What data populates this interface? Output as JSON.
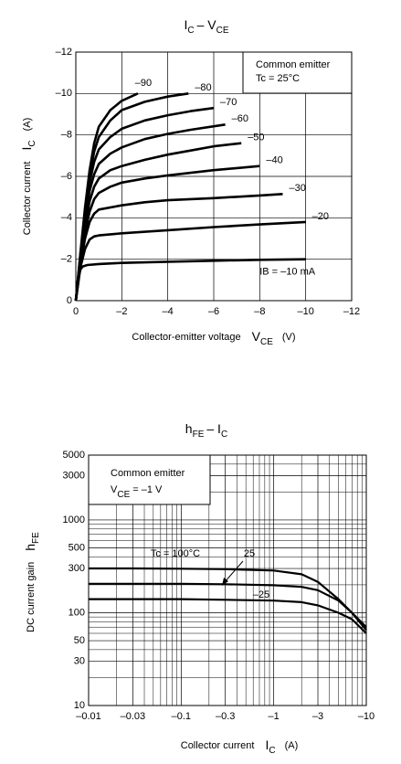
{
  "chart_data": [
    {
      "type": "line",
      "title": [
        "I",
        "C",
        "– V",
        "CE"
      ],
      "xlabel": [
        "Collector-emitter voltage",
        "V",
        "CE",
        "(V)"
      ],
      "ylabel": [
        "Collector current",
        "I",
        "C",
        "(A)"
      ],
      "annotations": [
        "Common emitter",
        "Tc = 25°C"
      ],
      "xlim": [
        0,
        -12
      ],
      "xticks": [
        0,
        {
          "value": -2,
          "label": "–2"
        },
        {
          "value": -4,
          "label": "–4"
        },
        {
          "value": -6,
          "label": "–6"
        },
        {
          "value": -8,
          "label": "–8"
        },
        {
          "value": -10,
          "label": "–10"
        },
        {
          "value": -12,
          "label": "–12"
        }
      ],
      "ylim": [
        0,
        -12
      ],
      "yticks": [
        0,
        {
          "value": -2,
          "label": "–2"
        },
        {
          "value": -4,
          "label": "–4"
        },
        {
          "value": -6,
          "label": "–6"
        },
        {
          "value": -8,
          "label": "–8"
        },
        {
          "value": -10,
          "label": "–10"
        },
        {
          "value": -12,
          "label": "–12"
        }
      ],
      "grid": true,
      "series": [
        {
          "name": "–90",
          "color": "#000000",
          "x": [
            0,
            -0.2,
            -0.4,
            -0.6,
            -0.8,
            -1,
            -1.5,
            -2,
            -2.7
          ],
          "values": [
            0,
            -2.3,
            -4.5,
            -6.3,
            -7.6,
            -8.4,
            -9.2,
            -9.65,
            -10.0
          ]
        },
        {
          "name": "–80",
          "color": "#000000",
          "x": [
            0,
            -0.2,
            -0.4,
            -0.6,
            -0.8,
            -1,
            -1.5,
            -2,
            -3,
            -4,
            -4.9
          ],
          "values": [
            0,
            -2.2,
            -4.3,
            -6.0,
            -7.2,
            -7.9,
            -8.7,
            -9.2,
            -9.6,
            -9.85,
            -10.0
          ]
        },
        {
          "name": "–70",
          "color": "#000000",
          "x": [
            0,
            -0.2,
            -0.4,
            -0.6,
            -0.8,
            -1,
            -1.5,
            -2,
            -3,
            -4,
            -5,
            -6
          ],
          "values": [
            0,
            -2.1,
            -4.1,
            -5.7,
            -6.7,
            -7.3,
            -7.9,
            -8.3,
            -8.7,
            -8.95,
            -9.15,
            -9.3
          ]
        },
        {
          "name": "–60",
          "color": "#000000",
          "x": [
            0,
            -0.2,
            -0.4,
            -0.6,
            -0.8,
            -1,
            -1.5,
            -2,
            -3,
            -4,
            -5,
            -6.5
          ],
          "values": [
            0,
            -2.0,
            -3.9,
            -5.3,
            -6.1,
            -6.6,
            -7.1,
            -7.4,
            -7.8,
            -8.05,
            -8.25,
            -8.5
          ]
        },
        {
          "name": "–50",
          "color": "#000000",
          "x": [
            0,
            -0.2,
            -0.4,
            -0.6,
            -0.8,
            -1,
            -1.5,
            -2,
            -3,
            -4,
            -5,
            -6,
            -7.2
          ],
          "values": [
            0,
            -1.9,
            -3.6,
            -4.8,
            -5.5,
            -5.9,
            -6.3,
            -6.5,
            -6.8,
            -7.05,
            -7.25,
            -7.45,
            -7.6
          ]
        },
        {
          "name": "–40",
          "color": "#000000",
          "x": [
            0,
            -0.2,
            -0.4,
            -0.6,
            -0.8,
            -1,
            -1.5,
            -2,
            -3,
            -4,
            -6,
            -8
          ],
          "values": [
            0,
            -1.8,
            -3.3,
            -4.3,
            -4.9,
            -5.2,
            -5.5,
            -5.7,
            -5.9,
            -6.05,
            -6.3,
            -6.5
          ]
        },
        {
          "name": "–30",
          "color": "#000000",
          "x": [
            0,
            -0.2,
            -0.4,
            -0.6,
            -0.8,
            -1,
            -2,
            -3,
            -4,
            -6,
            -8,
            -9
          ],
          "values": [
            0,
            -1.7,
            -3.0,
            -3.8,
            -4.2,
            -4.4,
            -4.6,
            -4.75,
            -4.85,
            -4.95,
            -5.08,
            -5.15
          ]
        },
        {
          "name": "–20",
          "color": "#000000",
          "x": [
            0,
            -0.2,
            -0.4,
            -0.6,
            -0.8,
            -1,
            -2,
            -4,
            -6,
            -8,
            -10
          ],
          "values": [
            0,
            -1.6,
            -2.5,
            -2.95,
            -3.1,
            -3.15,
            -3.25,
            -3.4,
            -3.55,
            -3.68,
            -3.8
          ]
        },
        {
          "name": "IB = –10 mA",
          "color": "#000000",
          "x": [
            0,
            -0.1,
            -0.2,
            -0.3,
            -0.5,
            -1,
            -2,
            -4,
            -6,
            -8,
            -10
          ],
          "values": [
            0,
            -1.0,
            -1.5,
            -1.65,
            -1.72,
            -1.77,
            -1.82,
            -1.88,
            -1.93,
            -1.97,
            -2.0
          ]
        }
      ]
    },
    {
      "type": "line",
      "title": [
        "h",
        "FE",
        "– I",
        "C"
      ],
      "xlabel": [
        "Collector current",
        "I",
        "C",
        "(A)"
      ],
      "ylabel": [
        "DC current gain",
        "h",
        "FE"
      ],
      "annotations": [
        "Common emitter",
        "V",
        "CE",
        "= –1 V"
      ],
      "xscale": "log",
      "yscale": "log",
      "xlim": [
        -0.01,
        -10
      ],
      "xticks": [
        {
          "value": -0.01,
          "label": "–0.01"
        },
        {
          "value": -0.03,
          "label": "–0.03"
        },
        {
          "value": -0.1,
          "label": "–0.1"
        },
        {
          "value": -0.3,
          "label": "–0.3"
        },
        {
          "value": -1,
          "label": "–1"
        },
        {
          "value": -3,
          "label": "–3"
        },
        {
          "value": -10,
          "label": "–10"
        }
      ],
      "ylim": [
        10,
        5000
      ],
      "yticks": [
        10,
        30,
        50,
        100,
        300,
        500,
        1000,
        3000,
        5000
      ],
      "x_minor_ticks": [
        -0.02,
        -0.04,
        -0.05,
        -0.06,
        -0.07,
        -0.08,
        -0.09,
        -0.2,
        -0.4,
        -0.5,
        -0.6,
        -0.7,
        -0.8,
        -0.9,
        -2,
        -4,
        -5,
        -6,
        -7,
        -8,
        -9
      ],
      "y_minor_ticks": [
        20,
        40,
        60,
        70,
        80,
        90,
        200,
        400,
        600,
        700,
        800,
        900,
        2000,
        4000
      ],
      "grid": true,
      "x": [
        -0.01,
        -0.03,
        -0.1,
        -0.3,
        -1,
        -2,
        -3,
        -5,
        -7,
        -10
      ],
      "series": [
        {
          "name": "Tc = 100°C",
          "color": "#000000",
          "values": [
            300,
            300,
            298,
            295,
            285,
            260,
            215,
            140,
            100,
            65
          ]
        },
        {
          "name": "25",
          "color": "#000000",
          "values": [
            205,
            205,
            205,
            203,
            198,
            190,
            175,
            135,
            100,
            70
          ]
        },
        {
          "name": "–25",
          "color": "#000000",
          "values": [
            140,
            140,
            140,
            138,
            135,
            130,
            120,
            100,
            85,
            60
          ]
        }
      ]
    }
  ]
}
